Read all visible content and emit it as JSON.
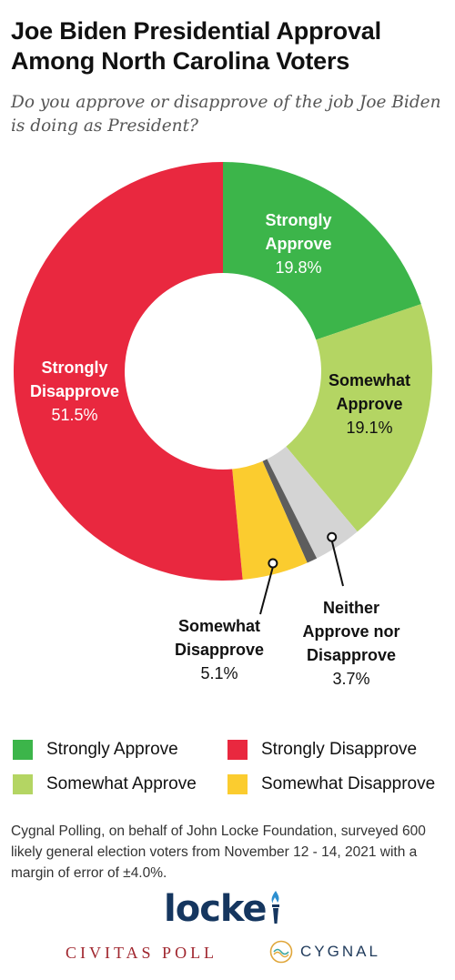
{
  "header": {
    "title": "Joe Biden Presidential Approval Among North Carolina Voters",
    "subtitle": "Do you approve or disapprove of the job Joe Biden is doing as President?"
  },
  "chart_data": {
    "type": "pie",
    "style": "donut",
    "slices": [
      {
        "label": "Strongly Approve",
        "value": 19.8,
        "value_label": "19.8%",
        "color": "#3cb54a"
      },
      {
        "label": "Somewhat Approve",
        "value": 19.1,
        "value_label": "19.1%",
        "color": "#b4d563"
      },
      {
        "label": "Neither Approve nor Disapprove",
        "value": 3.7,
        "value_label": "3.7%",
        "color": "#d4d4d4"
      },
      {
        "label": "Unlabeled",
        "value": 0.8,
        "value_label": "",
        "color": "#5d5d5d"
      },
      {
        "label": "Somewhat Disapprove",
        "value": 5.1,
        "value_label": "5.1%",
        "color": "#fbcc2f"
      },
      {
        "label": "Strongly Disapprove",
        "value": 51.5,
        "value_label": "51.5%",
        "color": "#e9283f"
      }
    ],
    "legend": {
      "placement": "bottom",
      "items": [
        "Strongly Approve",
        "Strongly Disapprove",
        "Somewhat Approve",
        "Somewhat Disapprove"
      ]
    }
  },
  "footnote": "Cygnal Polling, on behalf of John Locke Foundation, surveyed 600 likely general election voters from November 12 - 14, 2021 with a margin of error of ±4.0%.",
  "logos": {
    "locke": "locke",
    "civitas": "CIVITAS POLL",
    "cygnal": "CYGNAL"
  }
}
